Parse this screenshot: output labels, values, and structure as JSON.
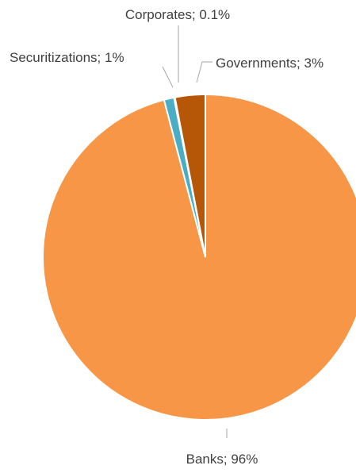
{
  "chart_data": {
    "type": "pie",
    "title": "",
    "slices": [
      {
        "name": "Banks",
        "value": 96,
        "label": "Banks; 96%",
        "color": "#F79646"
      },
      {
        "name": "Securitizations",
        "value": 1,
        "label": "Securitizations; 1%",
        "color": "#4BACC6"
      },
      {
        "name": "Corporates",
        "value": 0.1,
        "label": "Corporates; 0.1%",
        "color": "#7F7F7F"
      },
      {
        "name": "Governments",
        "value": 3,
        "label": "Governments; 3%",
        "color": "#B65708"
      }
    ],
    "legend": "none",
    "data_labels": "outside with leader lines"
  }
}
